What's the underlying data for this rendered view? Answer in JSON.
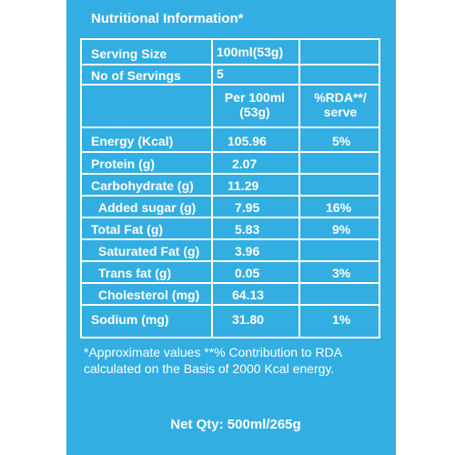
{
  "title": "Nutritional Information*",
  "serving_size": {
    "label": "Serving Size",
    "value": "100ml(53g)"
  },
  "servings": {
    "label": "No of Servings",
    "value": "5"
  },
  "headers": {
    "per": "Per 100ml (53g)",
    "rda": "%RDA**/ serve"
  },
  "rows": [
    {
      "label": "Energy (Kcal)",
      "value": "105.96",
      "rda": "5%"
    },
    {
      "label": "Protein (g)",
      "value": "2.07",
      "rda": ""
    },
    {
      "label": "Carbohydrate (g)",
      "value": "11.29",
      "rda": ""
    },
    {
      "label": "Added sugar (g)",
      "value": "7.95",
      "rda": "16%"
    },
    {
      "label": "Total Fat (g)",
      "value": "5.83",
      "rda": "9%"
    },
    {
      "label": "Saturated Fat (g)",
      "value": "3.96",
      "rda": ""
    },
    {
      "label": "Trans fat (g)",
      "value": "0.05",
      "rda": "3%"
    },
    {
      "label": "Cholesterol (mg)",
      "value": "64.13",
      "rda": ""
    },
    {
      "label": "Sodium (mg)",
      "value": "31.80",
      "rda": "1%"
    }
  ],
  "footnote": "*Approximate values **% Contribution to RDA calculated on the Basis of 2000 Kcal energy.",
  "net_qty": "Net Qty: 500ml/265g"
}
